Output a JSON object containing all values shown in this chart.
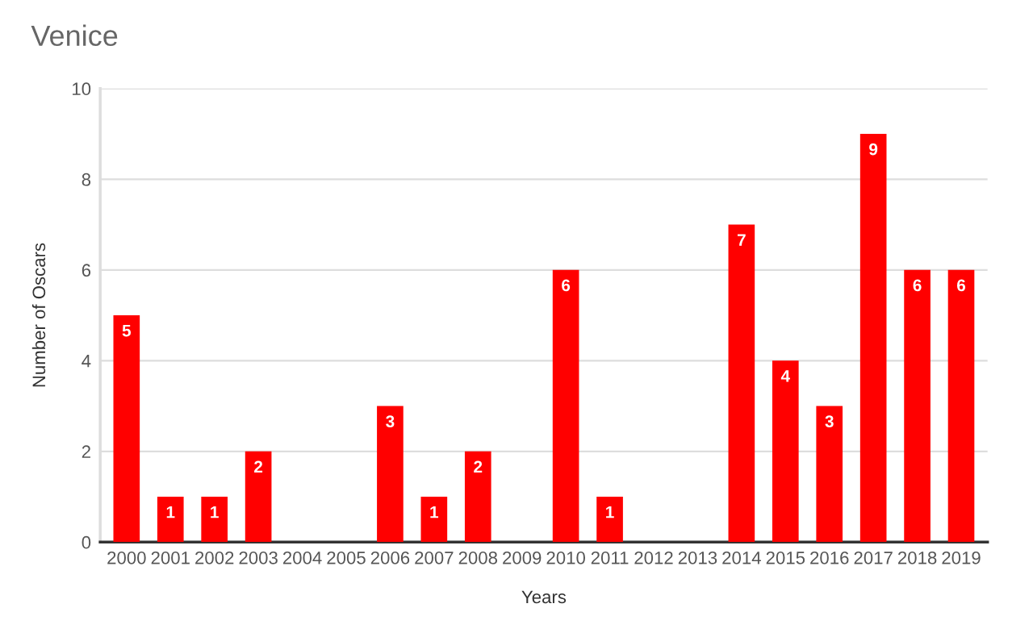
{
  "chart_data": {
    "type": "bar",
    "title": "Venice",
    "xlabel": "Years",
    "ylabel": "Number of Oscars",
    "categories": [
      "2000",
      "2001",
      "2002",
      "2003",
      "2004",
      "2005",
      "2006",
      "2007",
      "2008",
      "2009",
      "2010",
      "2011",
      "2012",
      "2013",
      "2014",
      "2015",
      "2016",
      "2017",
      "2018",
      "2019"
    ],
    "values": [
      5,
      1,
      1,
      2,
      0,
      0,
      3,
      1,
      2,
      0,
      6,
      1,
      0,
      0,
      7,
      4,
      3,
      9,
      6,
      6
    ],
    "value_labels": [
      "5",
      "1",
      "1",
      "2",
      null,
      null,
      "3",
      "1",
      "2",
      null,
      "6",
      "1",
      null,
      null,
      "7",
      "4",
      "3",
      "9",
      "6",
      "6"
    ],
    "color": "#ff0000",
    "ylim": [
      0,
      10
    ],
    "yticks": [
      0,
      2,
      4,
      6,
      8,
      10
    ],
    "grid": "y",
    "legend": false
  }
}
